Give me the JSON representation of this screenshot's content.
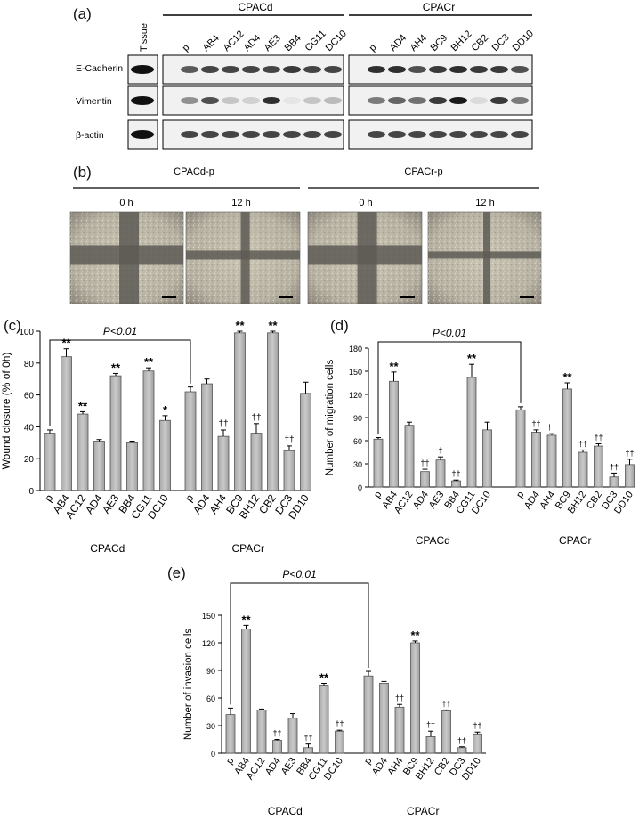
{
  "panels": {
    "a": "(a)",
    "b": "(b)",
    "c": "(c)",
    "d": "(d)",
    "e": "(e)"
  },
  "blot": {
    "group_cpacd": "CPACd",
    "group_cpacr": "CPACr",
    "tissue_label": "Tissue",
    "cpacd_lanes": [
      "p",
      "AB4",
      "AC12",
      "AD4",
      "AE3",
      "BB4",
      "CG11",
      "DC10"
    ],
    "cpacr_lanes": [
      "p",
      "AD4",
      "AH4",
      "BC9",
      "BH12",
      "CB2",
      "DC3",
      "DD10"
    ],
    "rows": [
      "E-Cadherin",
      "Vimentin",
      "β-actin"
    ]
  },
  "wound": {
    "group_d": "CPACd-p",
    "group_r": "CPACr-p",
    "times": [
      "0 h",
      "12 h",
      "0 h",
      "12 h"
    ]
  },
  "chart_data": [
    {
      "id": "c",
      "type": "bar",
      "ylabel": "Wound closure (% of 0h)",
      "ylim": [
        0,
        100
      ],
      "yticks": [
        0,
        20,
        40,
        60,
        80,
        100
      ],
      "significance": "P<0.01",
      "groups": [
        {
          "name": "CPACd",
          "categories": [
            "p",
            "AB4",
            "AC12",
            "AD4",
            "AE3",
            "BB4",
            "CG11",
            "DC10"
          ],
          "values": [
            36,
            84,
            48,
            31,
            72,
            30,
            75,
            44
          ],
          "errors": [
            2,
            5,
            1.5,
            1,
            1.5,
            1,
            2,
            3
          ],
          "marks": [
            "",
            "**",
            "**",
            "",
            "**",
            "",
            "**",
            "*"
          ]
        },
        {
          "name": "CPACr",
          "categories": [
            "p",
            "AD4",
            "AH4",
            "BC9",
            "BH12",
            "CB2",
            "DC3",
            "DD10"
          ],
          "values": [
            62,
            67,
            34,
            99,
            36,
            99,
            25,
            61
          ],
          "errors": [
            3,
            3,
            4,
            1,
            6,
            1,
            3,
            7
          ],
          "marks": [
            "",
            "",
            "††",
            "**",
            "††",
            "**",
            "††",
            ""
          ]
        }
      ]
    },
    {
      "id": "d",
      "type": "bar",
      "ylabel": "Number of migration cells",
      "ylim": [
        0,
        180
      ],
      "yticks": [
        0,
        30,
        60,
        90,
        120,
        150,
        180
      ],
      "significance": "P<0.01",
      "groups": [
        {
          "name": "CPACd",
          "categories": [
            "p",
            "AB4",
            "AC12",
            "AD4",
            "AE3",
            "BB4",
            "CG11",
            "DC10"
          ],
          "values": [
            62,
            137,
            80,
            20,
            35,
            8,
            142,
            74
          ],
          "errors": [
            2,
            12,
            4,
            3,
            4,
            1,
            17,
            10
          ],
          "marks": [
            "",
            "**",
            "",
            "††",
            "†",
            "††",
            "**",
            ""
          ]
        },
        {
          "name": "CPACr",
          "categories": [
            "p",
            "AD4",
            "AH4",
            "BC9",
            "BH12",
            "CB2",
            "DC3",
            "DD10"
          ],
          "values": [
            100,
            71,
            67,
            127,
            45,
            53,
            13,
            29
          ],
          "errors": [
            4,
            3,
            2,
            8,
            3,
            3,
            5,
            7
          ],
          "marks": [
            "",
            "††",
            "††",
            "**",
            "††",
            "††",
            "††",
            "††"
          ]
        }
      ]
    },
    {
      "id": "e",
      "type": "bar",
      "ylabel": "Number of invasion cells",
      "ylim": [
        0,
        150
      ],
      "yticks": [
        0,
        30,
        60,
        90,
        120,
        150
      ],
      "significance": "P<0.01",
      "groups": [
        {
          "name": "CPACd",
          "categories": [
            "p",
            "AB4",
            "AC12",
            "AD4",
            "AE3",
            "BB4",
            "CG11",
            "DC10"
          ],
          "values": [
            42,
            135,
            47,
            14,
            38,
            6,
            74,
            24
          ],
          "errors": [
            7,
            4,
            1,
            1,
            5,
            4,
            2,
            1
          ],
          "marks": [
            "",
            "**",
            "",
            "††",
            "",
            "††",
            "**",
            "††"
          ]
        },
        {
          "name": "CPACr",
          "categories": [
            "p",
            "AD4",
            "AH4",
            "BC9",
            "BH12",
            "CB2",
            "DC3",
            "DD10"
          ],
          "values": [
            84,
            76,
            50,
            120,
            18,
            46,
            6,
            21
          ],
          "errors": [
            5,
            2,
            3,
            2,
            6,
            1,
            1,
            2
          ],
          "marks": [
            "",
            "",
            "††",
            "**",
            "††",
            "††",
            "††",
            "††"
          ]
        }
      ]
    }
  ]
}
